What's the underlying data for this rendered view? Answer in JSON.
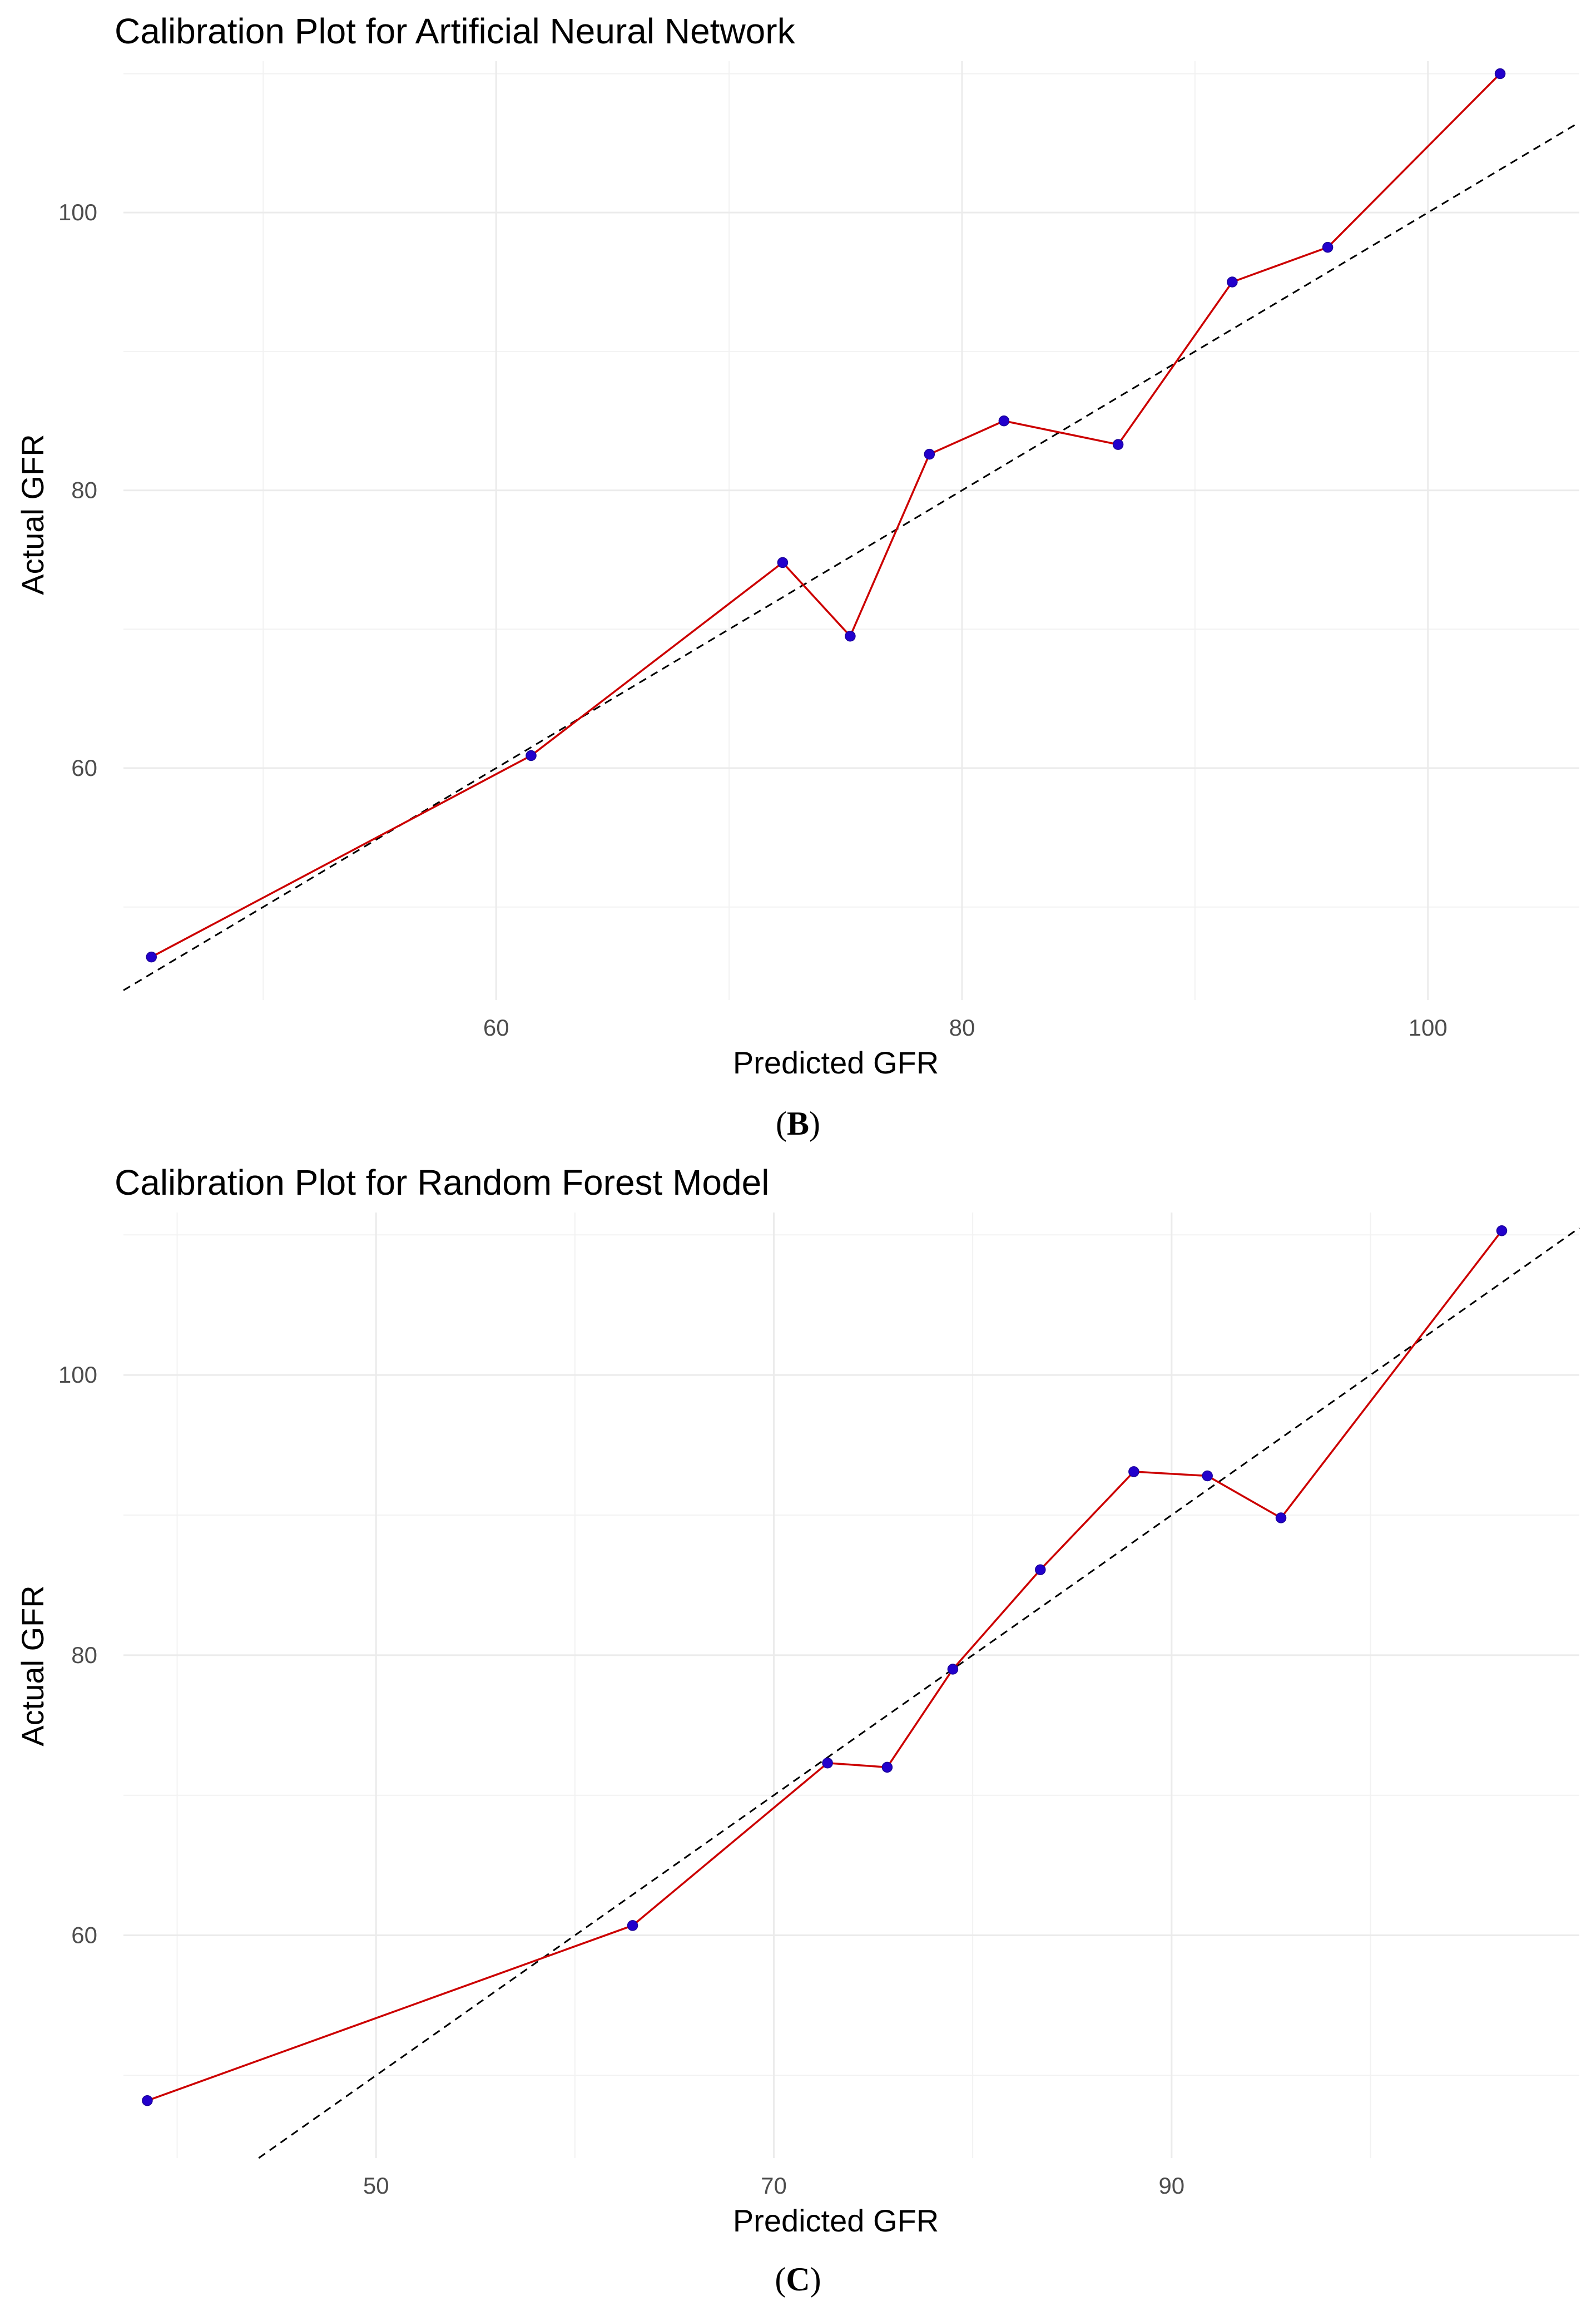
{
  "chart_data": [
    {
      "panel": "B",
      "type": "line",
      "title": "Calibration Plot for Artificial Neural Network",
      "xlabel": "Predicted GFR",
      "ylabel": "Actual GFR",
      "xlim": [
        44,
        106.5
      ],
      "ylim": [
        43.3,
        110.9
      ],
      "x_ticks": [
        60,
        80,
        100
      ],
      "y_ticks": [
        60,
        80,
        100
      ],
      "grid": true,
      "legend": "none",
      "series": [
        {
          "x": [
            45.2,
            61.5,
            72.3,
            75.2,
            78.6,
            81.8,
            86.7,
            91.6,
            95.7,
            103.1
          ],
          "y": [
            46.4,
            60.9,
            74.8,
            69.5,
            82.6,
            85.0,
            83.3,
            95.0,
            97.5,
            110.0
          ]
        }
      ],
      "reference_line": "y = x",
      "colors": {
        "line": "#cc0000",
        "points": "#2200cc",
        "reference": "#000000"
      }
    },
    {
      "panel": "C",
      "type": "line",
      "title": "Calibration Plot for Random Forest Model",
      "xlabel": "Predicted GFR",
      "ylabel": "Actual GFR",
      "xlim": [
        37.3,
        110.5
      ],
      "ylim": [
        44.1,
        111.6
      ],
      "x_ticks": [
        50,
        70,
        90
      ],
      "y_ticks": [
        60,
        80,
        100
      ],
      "grid": true,
      "legend": "none",
      "series": [
        {
          "x": [
            38.5,
            62.9,
            72.7,
            75.7,
            79.0,
            83.4,
            88.1,
            91.8,
            95.5,
            106.6
          ],
          "y": [
            48.2,
            60.7,
            72.3,
            72.0,
            79.0,
            86.1,
            93.1,
            92.8,
            89.8,
            110.3
          ]
        }
      ],
      "reference_line": "y = x",
      "colors": {
        "line": "#cc0000",
        "points": "#2200cc",
        "reference": "#000000"
      }
    }
  ]
}
